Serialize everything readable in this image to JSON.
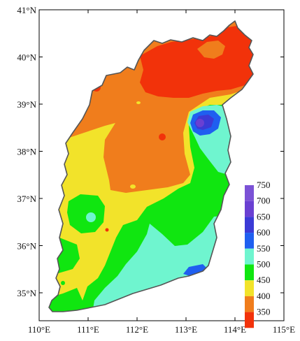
{
  "map": {
    "x_axis": {
      "tick_labels": [
        "110°E",
        "111°E",
        "112°E",
        "113°E",
        "114°E",
        "115°E"
      ]
    },
    "y_axis": {
      "tick_labels": [
        "41°N",
        "40°N",
        "39°N",
        "38°N",
        "37°N",
        "36°N",
        "35°N"
      ]
    },
    "legend": {
      "entries": [
        {
          "label": "750",
          "color": "#7b52d6"
        },
        {
          "label": "700",
          "color": "#6a40d2"
        },
        {
          "label": "650",
          "color": "#3b3ad6"
        },
        {
          "label": "600",
          "color": "#1f5ff0"
        },
        {
          "label": "550",
          "color": "#6ff5cf"
        },
        {
          "label": "500",
          "color": "#10e610"
        },
        {
          "label": "450",
          "color": "#f2e32a"
        },
        {
          "label": "400",
          "color": "#f07d1c"
        },
        {
          "label": "350",
          "color": "#f2320a"
        }
      ]
    },
    "colors": {
      "background": "#ffffff",
      "outline": "#555555",
      "axis": "#000000"
    }
  }
}
